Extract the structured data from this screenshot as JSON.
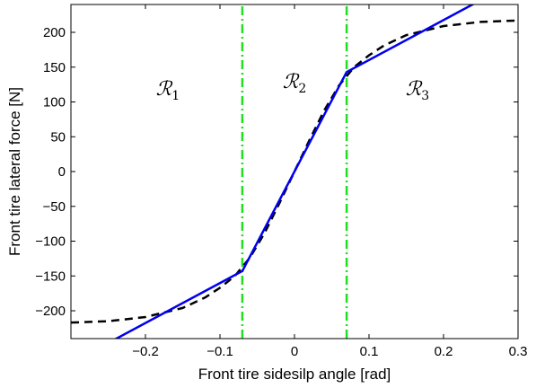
{
  "chart_data": {
    "type": "line",
    "xlabel": "Front tire sidesilp angle [rad]",
    "ylabel": "Front tire lateral force [N]",
    "xlim": [
      -0.3,
      0.3
    ],
    "ylim": [
      -240,
      240
    ],
    "xticks": [
      -0.2,
      -0.1,
      0,
      0.1,
      0.2,
      0.3
    ],
    "xtick_labels": [
      "−0.2",
      "−0.1",
      "0",
      "0.1",
      "0.2",
      "0.3"
    ],
    "yticks": [
      -200,
      -150,
      -100,
      -50,
      0,
      50,
      100,
      150,
      200
    ],
    "ytick_labels": [
      "−200",
      "−150",
      "−100",
      "−50",
      "0",
      "50",
      "100",
      "150",
      "200"
    ],
    "grid": false,
    "colors": {
      "tire": "#000000",
      "pwa": "#0000ee",
      "bounds": "#22dd22"
    },
    "series": [
      {
        "style": "dashed-black",
        "x": [
          -0.3,
          -0.25,
          -0.2,
          -0.15,
          -0.12,
          -0.1,
          -0.08,
          -0.06,
          -0.04,
          -0.02,
          0,
          0.02,
          0.04,
          0.06,
          0.08,
          0.1,
          0.12,
          0.15,
          0.2,
          0.25,
          0.3
        ],
        "y": [
          -217,
          -215,
          -209,
          -196,
          -181,
          -167,
          -150,
          -124,
          -88,
          -45,
          0,
          45,
          88,
          124,
          150,
          167,
          181,
          196,
          209,
          215,
          217
        ]
      },
      {
        "style": "solid-blue",
        "x": [
          -0.3,
          -0.07,
          0.07,
          0.3
        ],
        "y": [
          -275,
          -143,
          143,
          275
        ]
      },
      {
        "style": "dashdot-green",
        "x": [
          -0.07,
          -0.07
        ],
        "y": [
          -240,
          240
        ]
      },
      {
        "style": "dashdot-green",
        "x": [
          0.07,
          0.07
        ],
        "y": [
          -240,
          240
        ]
      }
    ],
    "annotations": [
      {
        "symbol": "ℛ",
        "subscript": "1",
        "x": -0.17,
        "y": 110
      },
      {
        "symbol": "ℛ",
        "subscript": "2",
        "x": 0.0,
        "y": 120
      },
      {
        "symbol": "ℛ",
        "subscript": "3",
        "x": 0.165,
        "y": 110
      }
    ]
  }
}
